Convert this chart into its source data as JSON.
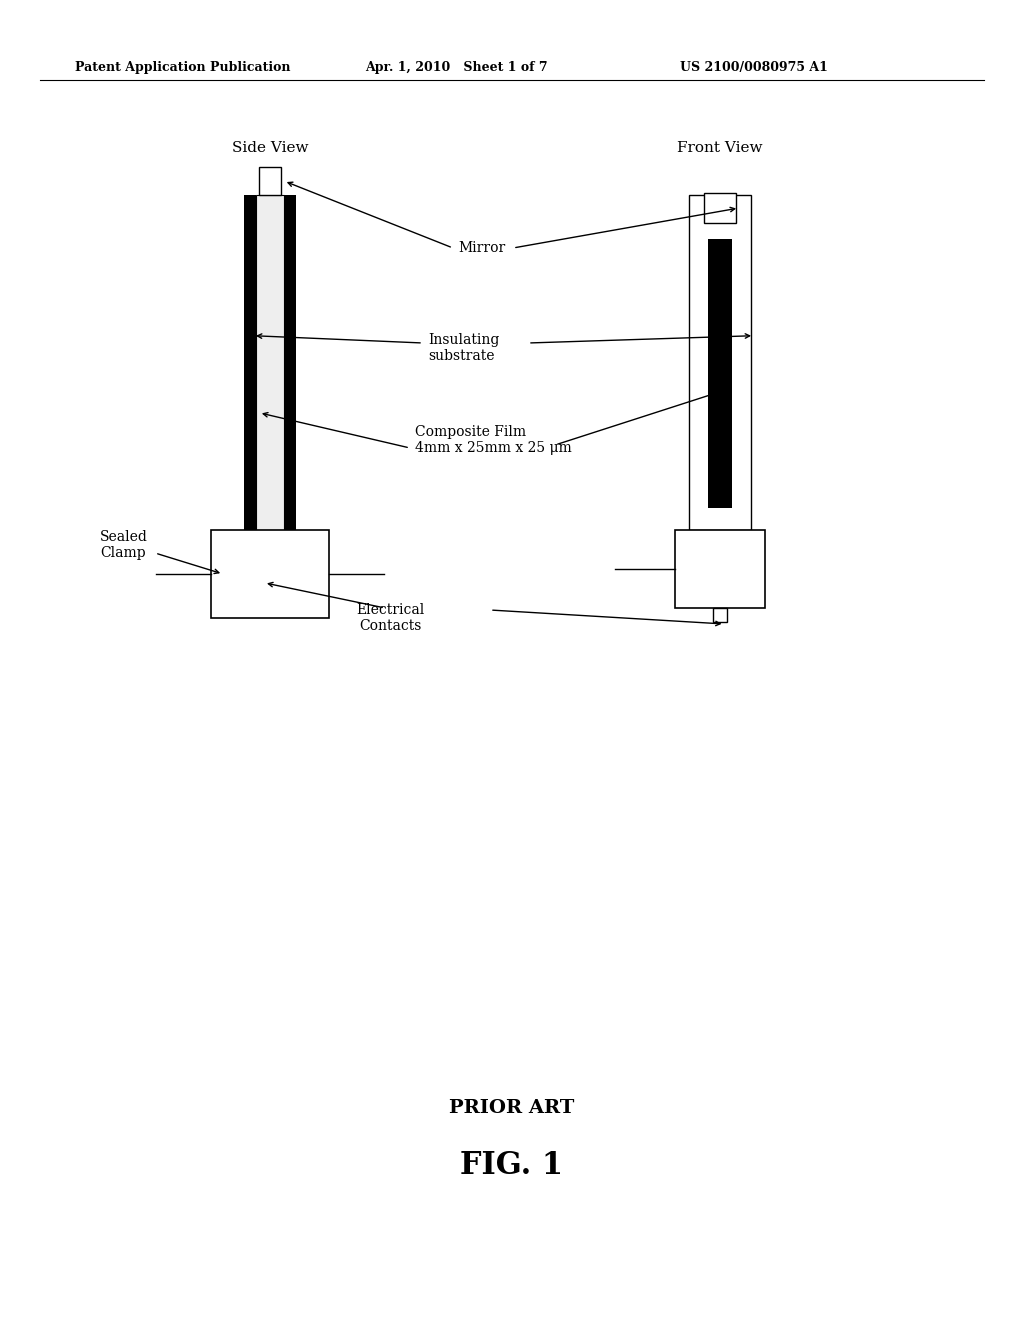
{
  "bg_color": "#ffffff",
  "header_left": "Patent Application Publication",
  "header_mid": "Apr. 1, 2010   Sheet 1 of 7",
  "header_right": "US 2100/0080975 A1",
  "footer_label1": "PRIOR ART",
  "footer_label2": "FIG. 1",
  "side_view_label": "Side View",
  "front_view_label": "Front View",
  "label_mirror": "Mirror",
  "label_insulating": "Insulating\nsubstrate",
  "label_composite": "Composite Film\n4mm x 25mm x 25 μm",
  "label_sealed_clamp": "Sealed\nClamp",
  "label_electrical": "Electrical\nContacts"
}
